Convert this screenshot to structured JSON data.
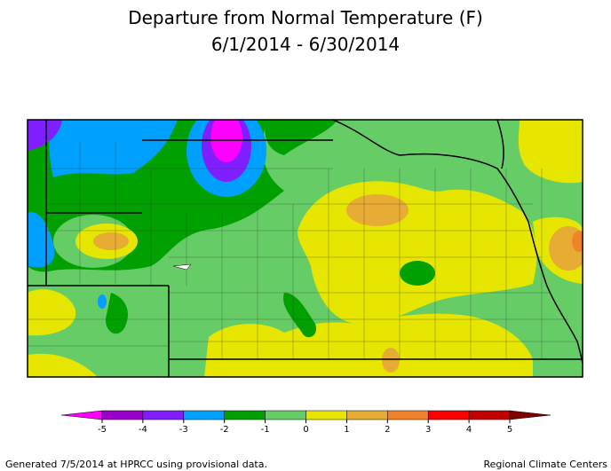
{
  "title": "Departure from Normal Temperature (F)",
  "subtitle": "6/1/2014 - 6/30/2014",
  "legend": {
    "colors": [
      "#ff00ff",
      "#9900cc",
      "#7f1fff",
      "#00a0ff",
      "#00a000",
      "#66cc66",
      "#e6e600",
      "#e6ac33",
      "#f08228",
      "#ff0000",
      "#c00000",
      "#800000"
    ],
    "ticks": [
      -5,
      -4,
      -3,
      -2,
      -1,
      0,
      1,
      2,
      3,
      4,
      5
    ]
  },
  "footer": {
    "left": "Generated 7/5/2014 at HPRCC using provisional data.",
    "right": "Regional Climate Centers"
  }
}
